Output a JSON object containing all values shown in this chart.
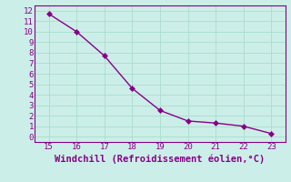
{
  "x": [
    15,
    16,
    17,
    18,
    19,
    20,
    21,
    22,
    23
  ],
  "y": [
    11.7,
    10.0,
    7.7,
    4.6,
    2.5,
    1.5,
    1.3,
    1.0,
    0.3
  ],
  "line_color": "#880088",
  "marker": "D",
  "marker_size": 3,
  "xlabel": "Windchill (Refroidissement éolien,°C)",
  "xlim": [
    14.5,
    23.5
  ],
  "ylim": [
    -0.5,
    12.5
  ],
  "xticks": [
    15,
    16,
    17,
    18,
    19,
    20,
    21,
    22,
    23
  ],
  "yticks": [
    0,
    1,
    2,
    3,
    4,
    5,
    6,
    7,
    8,
    9,
    10,
    11,
    12
  ],
  "background_color": "#cceee8",
  "grid_color": "#aaddcc",
  "border_color": "#880088",
  "tick_color": "#880088",
  "label_color": "#880088",
  "tick_fontsize": 6.5,
  "xlabel_fontsize": 7.5
}
